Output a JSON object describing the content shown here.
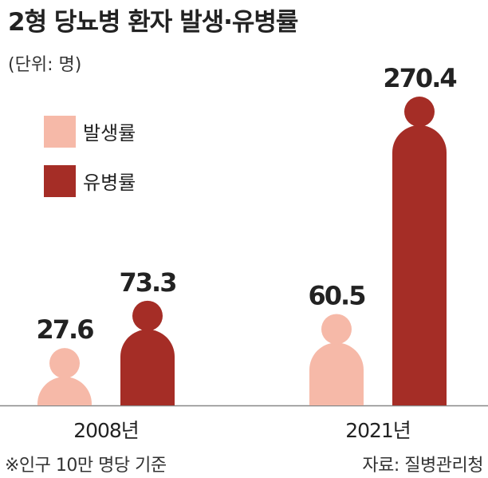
{
  "chart_data": {
    "type": "bar",
    "title": "2형 당뇨병 환자 발생·유병률",
    "subtitle": "(단위:  명)",
    "categories": [
      "2008년",
      "2021년"
    ],
    "series": [
      {
        "name": "발생률",
        "color": "#f6b9a8",
        "values": [
          27.6,
          60.5
        ]
      },
      {
        "name": "유병률",
        "color": "#a52d26",
        "values": [
          73.3,
          270.4
        ]
      }
    ],
    "footnote": "※인구 10만 명당 기준",
    "source": "자료: 질병관리청"
  }
}
